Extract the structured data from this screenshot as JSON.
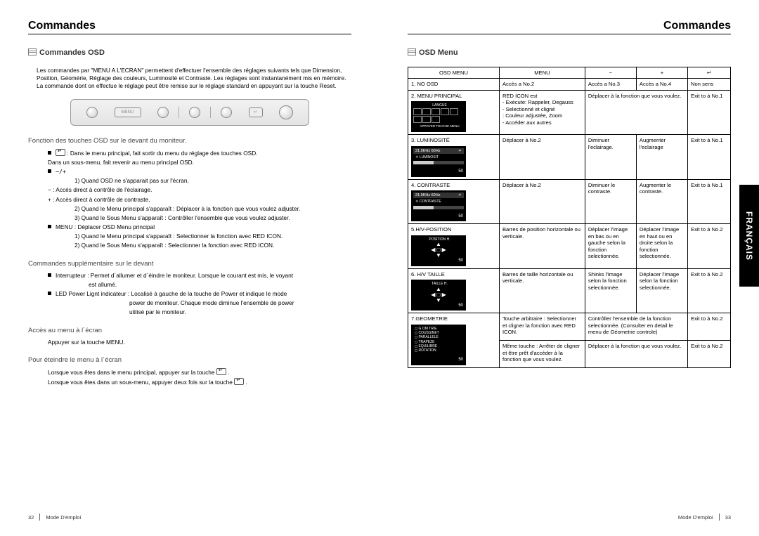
{
  "headers": {
    "left": "Commandes",
    "right": "Commandes"
  },
  "section_left": "Commandes OSD",
  "section_right": "OSD Menu",
  "lang_tab": "FRANÇAIS",
  "intro": "Les commandes par \"MENU A L'ECRAN\" permettent d'effectuer l'ensemble des réglages suivants tels que Dimension, Position, Géomérie, Réglage des couleurs, Luminosité et Contraste. Les réglages sont instantanément mis en mémoire. La commande dont on effectue le réglage peut être remise sur le réglage standard en appuyant sur la touche Reset.",
  "sub1": "Fonction des touches OSD sur le devant du moniteur.",
  "s1_a1": ": Dans le menu principal, fait sortir du menu du réglage des touches OSD.",
  "s1_a2": "Dans un sous-menu, fait revenir au menu principal OSD.",
  "s1_pm": "−/+",
  "s1_b1": "1) Quand OSD ne s'apparait pas sur l'écran,",
  "s1_b1a": "− : Accès direct à contrôle de l'éclairage.",
  "s1_b1b": "+ : Accès direct à contrôle de contraste.",
  "s1_b2": "2) Quand le Menu principal s'apparaît : Déplacer à la fonction que vous voulez adjuster.",
  "s1_b3": "3) Quand le Sous Menu s'apparaît : Contrôller l'ensemble que vous voulez adjuster.",
  "s1_c": "MENU : Déplacer OSD Menu principal",
  "s1_c1": "1) Quand le Menu principal s'apparaît : Selectionner la fonction avec RED ICON.",
  "s1_c2": "2) Quand le Sous Menu s'apparaît : Selectionner la fonction avec RED ICON.",
  "sub2": "Commandes supplémentaire sur le devant",
  "s2_a": "Interrupteur : Permet d´allumer et d´éindre le moniteur. Lorsque le courant est mis, le voyant",
  "s2_a2": "est allumé.",
  "s2_b": "LED Power Lignt indicateur : Localisé à gauche de la touche de Power et indique le mode",
  "s2_b2": "power de moniteur. Chaque mode diminue l'ensemble de power",
  "s2_b3": "utilisé par le moniteur.",
  "sub3": "Accès au menu à l´écran",
  "s3_a": "Appuyer sur la touche MENU.",
  "sub4": "Pour éteindre le menu à l´écran",
  "s4_a": "Lorsque vous êtes dans le menu principal, appuyer sur la touche",
  "s4_b": "Lorsque vous êtes dans un sous-menu, appuyer deux fois sur la touche",
  "footer": {
    "left_num": "32",
    "right_num": "33",
    "text": "Mode D'emploi"
  },
  "table": {
    "head": [
      "OSD MENU",
      "MENU",
      "−",
      "+",
      "↵"
    ],
    "rows": [
      {
        "c1_title": "1. NO OSD",
        "c1_osd": null,
        "c2": "Accès a No.2",
        "c3": "Accès a No.3",
        "c4": "Accès a No.4",
        "c5": "Non sens"
      },
      {
        "c1_title": "2. MENU PRINCIPAL",
        "c1_osd": "icons",
        "c1_osd_label": "LANGUE",
        "c1_osd_foot": "APPOYER TOUCHE MENU",
        "c2": "RED ICON est\n- Exécute: Rappeler, Degauss\n- Selectionné et cligné\n: Couleur adjustée, Zoom\n- Accéder aux autres",
        "c34": "Déplacer à la fonction que vous voulez.",
        "c5": "Exit to à No.1"
      },
      {
        "c1_title": "3. LUMINOSITÉ",
        "c1_osd": "slider",
        "c1_osd_label": "LUMINOSIT",
        "c1_osd_val": "50",
        "c2": "Déplacer à No.2",
        "c3": "Diminuer l'eclairage.",
        "c4": "Augmenter l'eclairage",
        "c5": "Exit to à No.1"
      },
      {
        "c1_title": "4. CONTRASTE",
        "c1_osd": "slider",
        "c1_osd_label": "CONTRASTE",
        "c1_osd_val": "50",
        "c2": "Déplacer à No.2",
        "c3": "Diminuer le contraste.",
        "c4": "Augmenter le contraste.",
        "c5": "Exit to à No.1"
      },
      {
        "c1_title": "5.H/V-POSITION",
        "c1_osd": "arrows",
        "c1_osd_label": "POSITION H.",
        "c2": "Barres de position horizontale ou verticale.",
        "c3": "Déplacer l'image en bas ou en gauche selon la fonction selectionnée.",
        "c4": "Déplacer l'image en haut ou en droite selon la fonction selectionnée.",
        "c5": "Exit to à No.2"
      },
      {
        "c1_title": "6. H/V TAILLE",
        "c1_osd": "arrows",
        "c1_osd_label": "TAILLE H.",
        "c2": "Barres de taille horizontale ou verticale.",
        "c3": "Shinks l'image selon la fonction selectionnée.",
        "c4": "Déplacer l'image selon la fonction selectionnée.",
        "c5": "Exit to à No.2"
      },
      {
        "c1_title": "7.GEOMETRIE",
        "c1_osd": "list",
        "c1_osd_lines": [
          "G OM TRIE",
          "",
          "COUSSINET",
          "PARALLELE",
          "TRAPEZE",
          "EQUILIBRE",
          "ROTATION"
        ],
        "c2": "Touche arbitraire : Selectionner et cligner la fonction avec RED ICON.",
        "c34": "Contrôller l'ensemble de la fonction selectionnée. (Consulter en detail le menu de Géometrie controle)",
        "c5": "Exit to à No.2",
        "r2c2": "Même touche : Arrêter de cligner et être prêt d'accéder à la fonction que vous voulez.",
        "r2c34": "Déplacer à la fonction que vous voulez.",
        "r2c5": "Exit to à No.2"
      }
    ],
    "freq": "21.9KHz    60Hz"
  }
}
